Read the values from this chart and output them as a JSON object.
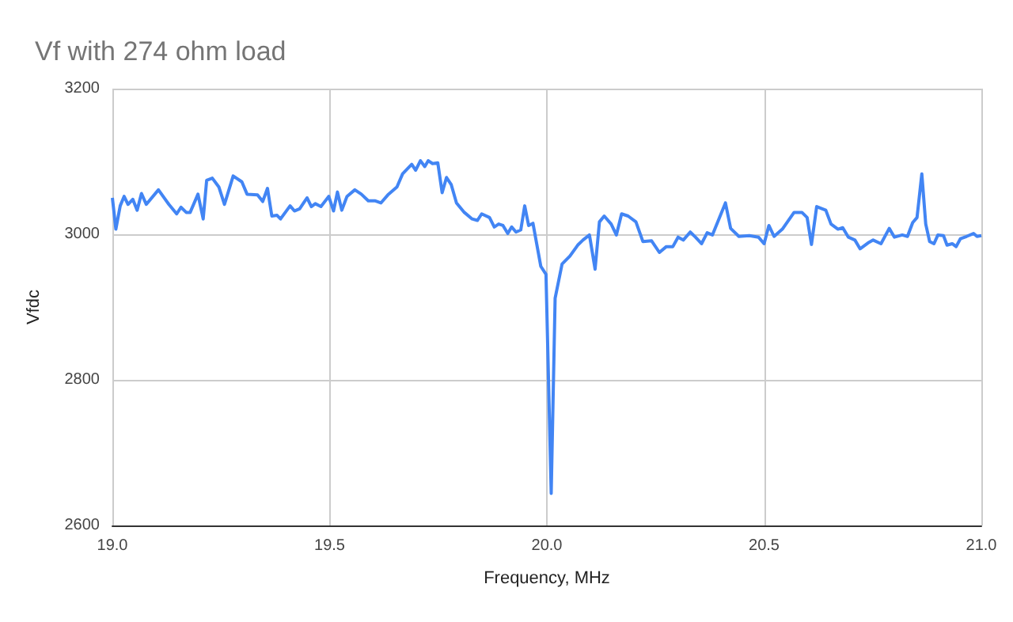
{
  "chart_data": {
    "type": "line",
    "title": "Vf with 274 ohm load",
    "xlabel": "Frequency, MHz",
    "ylabel": "Vfdc",
    "xlim": [
      19,
      21
    ],
    "xticks": [
      {
        "value": 19,
        "label": "19.0"
      },
      19.5,
      {
        "value": 20,
        "label": "20.0"
      },
      20.5,
      {
        "value": 21,
        "label": "21.0"
      }
    ],
    "ylim": [
      2600,
      3200
    ],
    "yticks": [
      2600,
      2800,
      3000,
      3200
    ],
    "grid": true,
    "marker": "none",
    "line_style": "solid",
    "series": [
      {
        "color": "#4285f4",
        "x": [
          19.0,
          19.008,
          19.018,
          19.027,
          19.036,
          19.047,
          19.057,
          19.067,
          19.078,
          19.106,
          19.13,
          19.148,
          19.158,
          19.17,
          19.179,
          19.197,
          19.209,
          19.217,
          19.23,
          19.245,
          19.258,
          19.278,
          19.298,
          19.31,
          19.334,
          19.346,
          19.357,
          19.367,
          19.379,
          19.387,
          19.409,
          19.419,
          19.431,
          19.448,
          19.458,
          19.467,
          19.48,
          19.498,
          19.509,
          19.518,
          19.528,
          19.54,
          19.558,
          19.573,
          19.589,
          19.604,
          19.618,
          19.634,
          19.655,
          19.668,
          19.689,
          19.698,
          19.709,
          19.719,
          19.727,
          19.737,
          19.749,
          19.759,
          19.769,
          19.78,
          19.792,
          19.81,
          19.828,
          19.84,
          19.85,
          19.868,
          19.879,
          19.889,
          19.899,
          19.91,
          19.919,
          19.929,
          19.94,
          19.949,
          19.958,
          19.968,
          19.986,
          19.998,
          20.01,
          20.019,
          20.035,
          20.053,
          20.071,
          20.083,
          20.098,
          20.111,
          20.121,
          20.132,
          20.148,
          20.16,
          20.172,
          20.187,
          20.205,
          20.221,
          20.241,
          20.259,
          20.275,
          20.29,
          20.302,
          20.314,
          20.33,
          20.342,
          20.356,
          20.369,
          20.381,
          20.411,
          20.423,
          20.442,
          20.466,
          20.487,
          20.5,
          20.511,
          20.523,
          20.542,
          20.569,
          20.587,
          20.599,
          20.609,
          20.621,
          20.642,
          20.654,
          20.67,
          20.681,
          20.694,
          20.709,
          20.721,
          20.739,
          20.751,
          20.769,
          20.788,
          20.8,
          20.818,
          20.83,
          20.842,
          20.852,
          20.863,
          20.872,
          20.881,
          20.891,
          20.9,
          20.913,
          20.921,
          20.933,
          20.942,
          20.952,
          20.966,
          20.982,
          20.99,
          21.0
        ],
        "values": [
          3050,
          3007,
          3039,
          3052,
          3041,
          3048,
          3033,
          3056,
          3041,
          3061,
          3041,
          3028,
          3037,
          3030,
          3030,
          3055,
          3021,
          3074,
          3077,
          3065,
          3041,
          3080,
          3072,
          3055,
          3054,
          3045,
          3063,
          3025,
          3026,
          3021,
          3039,
          3032,
          3035,
          3050,
          3038,
          3042,
          3038,
          3052,
          3032,
          3058,
          3033,
          3052,
          3061,
          3055,
          3046,
          3046,
          3043,
          3054,
          3065,
          3083,
          3096,
          3088,
          3101,
          3093,
          3101,
          3097,
          3098,
          3057,
          3078,
          3068,
          3043,
          3030,
          3021,
          3019,
          3028,
          3023,
          3010,
          3014,
          3012,
          3001,
          3010,
          3003,
          3006,
          3039,
          3012,
          3015,
          2956,
          2945,
          2644,
          2912,
          2959,
          2970,
          2985,
          2992,
          2999,
          2952,
          3017,
          3025,
          3014,
          2999,
          3028,
          3025,
          3017,
          2990,
          2991,
          2975,
          2983,
          2983,
          2996,
          2992,
          3003,
          2996,
          2987,
          3002,
          2999,
          3043,
          3008,
          2997,
          2998,
          2996,
          2987,
          3012,
          2997,
          3007,
          3030,
          3030,
          3023,
          2986,
          3038,
          3033,
          3014,
          3007,
          3009,
          2996,
          2992,
          2980,
          2988,
          2992,
          2987,
          3008,
          2996,
          2999,
          2997,
          3016,
          3023,
          3083,
          3014,
          2990,
          2987,
          2999,
          2998,
          2985,
          2987,
          2983,
          2994,
          2997,
          3001,
          2997,
          2998
        ]
      }
    ]
  }
}
